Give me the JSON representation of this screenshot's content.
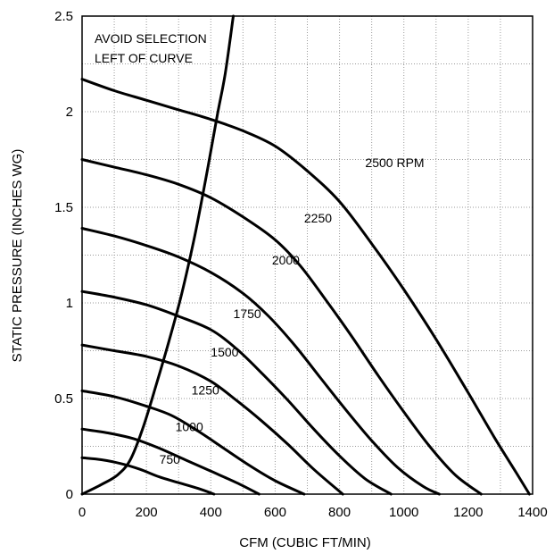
{
  "chart_data": {
    "type": "line",
    "title": "",
    "xlabel": "CFM (CUBIC FT/MIN)",
    "ylabel": "STATIC PRESSURE (INCHES WG)",
    "xlim": [
      0,
      1400
    ],
    "ylim": [
      0,
      2.5
    ],
    "x_ticks": [
      "0",
      "200",
      "400",
      "600",
      "800",
      "1000",
      "1200",
      "1400"
    ],
    "y_ticks": [
      "0",
      "0.5",
      "1",
      "1.5",
      "2",
      "2.5"
    ],
    "grid": true,
    "annotation_lines": [
      "AVOID SELECTION",
      "LEFT OF CURVE"
    ],
    "series": [
      {
        "name": "750",
        "points": [
          [
            0,
            0.19
          ],
          [
            60,
            0.18
          ],
          [
            120,
            0.16
          ],
          [
            180,
            0.13
          ],
          [
            240,
            0.09
          ],
          [
            300,
            0.06
          ],
          [
            360,
            0.03
          ],
          [
            410,
            0.0
          ]
        ]
      },
      {
        "name": "1000",
        "points": [
          [
            0,
            0.34
          ],
          [
            80,
            0.32
          ],
          [
            160,
            0.29
          ],
          [
            240,
            0.24
          ],
          [
            320,
            0.18
          ],
          [
            400,
            0.12
          ],
          [
            480,
            0.06
          ],
          [
            550,
            0.0
          ]
        ]
      },
      {
        "name": "1250",
        "points": [
          [
            0,
            0.54
          ],
          [
            100,
            0.51
          ],
          [
            200,
            0.46
          ],
          [
            280,
            0.41
          ],
          [
            360,
            0.33
          ],
          [
            440,
            0.24
          ],
          [
            520,
            0.15
          ],
          [
            600,
            0.07
          ],
          [
            690,
            0.0
          ]
        ]
      },
      {
        "name": "1500",
        "points": [
          [
            0,
            0.78
          ],
          [
            100,
            0.75
          ],
          [
            200,
            0.72
          ],
          [
            300,
            0.67
          ],
          [
            400,
            0.59
          ],
          [
            480,
            0.49
          ],
          [
            560,
            0.38
          ],
          [
            640,
            0.26
          ],
          [
            720,
            0.13
          ],
          [
            810,
            0.0
          ]
        ]
      },
      {
        "name": "1750",
        "points": [
          [
            0,
            1.06
          ],
          [
            100,
            1.03
          ],
          [
            200,
            0.99
          ],
          [
            300,
            0.93
          ],
          [
            400,
            0.86
          ],
          [
            480,
            0.76
          ],
          [
            560,
            0.63
          ],
          [
            640,
            0.49
          ],
          [
            720,
            0.34
          ],
          [
            800,
            0.2
          ],
          [
            880,
            0.08
          ],
          [
            960,
            0.0
          ]
        ]
      },
      {
        "name": "2000",
        "points": [
          [
            0,
            1.39
          ],
          [
            100,
            1.35
          ],
          [
            200,
            1.3
          ],
          [
            300,
            1.24
          ],
          [
            400,
            1.16
          ],
          [
            500,
            1.05
          ],
          [
            580,
            0.93
          ],
          [
            660,
            0.78
          ],
          [
            740,
            0.61
          ],
          [
            820,
            0.44
          ],
          [
            900,
            0.28
          ],
          [
            980,
            0.14
          ],
          [
            1060,
            0.04
          ],
          [
            1110,
            0.0
          ]
        ]
      },
      {
        "name": "2250",
        "points": [
          [
            0,
            1.75
          ],
          [
            100,
            1.71
          ],
          [
            200,
            1.67
          ],
          [
            300,
            1.62
          ],
          [
            400,
            1.55
          ],
          [
            500,
            1.45
          ],
          [
            600,
            1.33
          ],
          [
            680,
            1.19
          ],
          [
            760,
            1.01
          ],
          [
            840,
            0.82
          ],
          [
            920,
            0.62
          ],
          [
            1000,
            0.43
          ],
          [
            1080,
            0.25
          ],
          [
            1160,
            0.1
          ],
          [
            1240,
            0.0
          ]
        ]
      },
      {
        "name": "2500 RPM",
        "points": [
          [
            0,
            2.17
          ],
          [
            100,
            2.11
          ],
          [
            200,
            2.06
          ],
          [
            300,
            2.01
          ],
          [
            400,
            1.96
          ],
          [
            500,
            1.9
          ],
          [
            600,
            1.82
          ],
          [
            700,
            1.69
          ],
          [
            800,
            1.53
          ],
          [
            900,
            1.31
          ],
          [
            1000,
            1.07
          ],
          [
            1100,
            0.81
          ],
          [
            1200,
            0.53
          ],
          [
            1280,
            0.3
          ],
          [
            1350,
            0.11
          ],
          [
            1390,
            0.0
          ]
        ]
      }
    ],
    "limit_curve": {
      "name": "",
      "points": [
        [
          0,
          0.0
        ],
        [
          60,
          0.05
        ],
        [
          110,
          0.1
        ],
        [
          150,
          0.18
        ],
        [
          190,
          0.35
        ],
        [
          230,
          0.57
        ],
        [
          270,
          0.8
        ],
        [
          310,
          1.05
        ],
        [
          350,
          1.35
        ],
        [
          390,
          1.7
        ],
        [
          420,
          1.98
        ],
        [
          445,
          2.2
        ],
        [
          470,
          2.5
        ]
      ]
    },
    "label_positions": [
      {
        "series": "750",
        "x": 240,
        "y": 0.16
      },
      {
        "series": "1000",
        "x": 290,
        "y": 0.33
      },
      {
        "series": "1250",
        "x": 340,
        "y": 0.52
      },
      {
        "series": "1500",
        "x": 400,
        "y": 0.72
      },
      {
        "series": "1750",
        "x": 470,
        "y": 0.92
      },
      {
        "series": "2000",
        "x": 590,
        "y": 1.2
      },
      {
        "series": "2250",
        "x": 690,
        "y": 1.42
      },
      {
        "series": "2500 RPM",
        "x": 880,
        "y": 1.71
      }
    ]
  }
}
